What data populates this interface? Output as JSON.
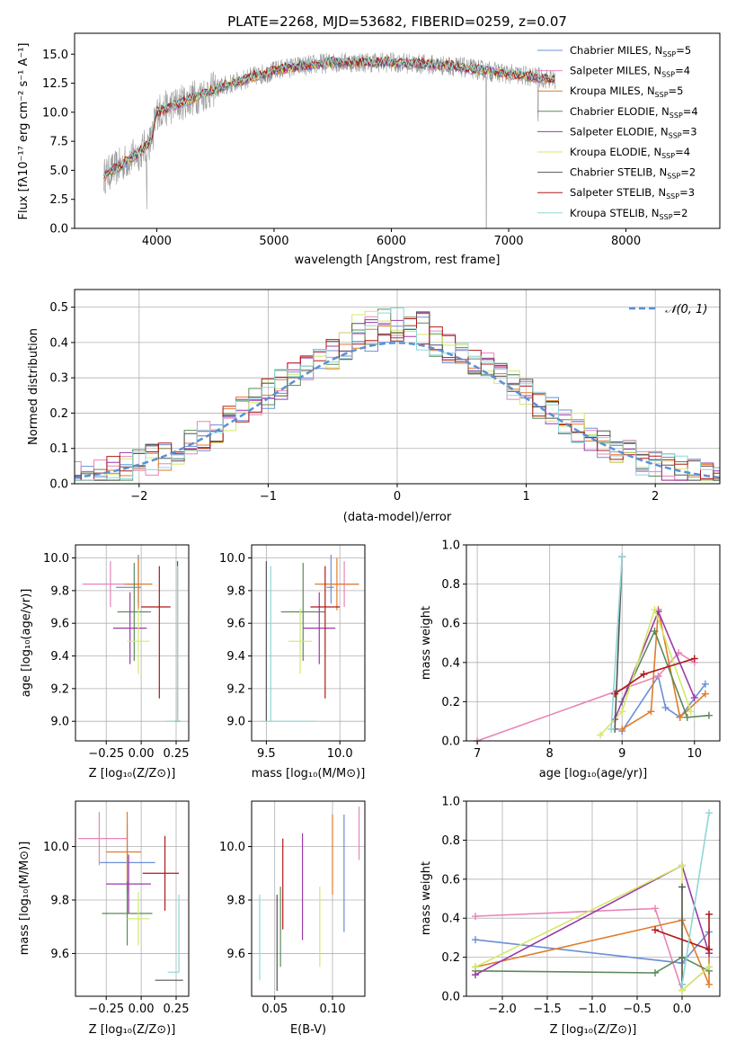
{
  "figure": {
    "title": "PLATE=2268, MJD=53682, FIBERID=0259, z=0.07"
  },
  "colors": {
    "Chabrier MILES": "#6a8fd6",
    "Salpeter MILES": "#e884b9",
    "Kroupa MILES": "#e07b29",
    "Chabrier ELODIE": "#5a8a5a",
    "Salpeter ELODIE": "#9b3aa8",
    "Kroupa ELODIE": "#d4e86a",
    "Chabrier STELIB": "#555555",
    "Salpeter STELIB": "#b01818",
    "Kroupa STELIB": "#8fd7d7",
    "data": "#999999",
    "normal": "#5b8fd6"
  },
  "chart_data": [
    {
      "id": "spectrum",
      "type": "line",
      "title": "PLATE=2268, MJD=53682, FIBERID=0259, z=0.07",
      "xlabel": "wavelength [Angstrom, rest frame]",
      "ylabel": "Flux [fλ10⁻¹⁷ erg cm⁻² s⁻¹ A⁻¹]",
      "xlim": [
        3300,
        8800
      ],
      "ylim": [
        0,
        16.8
      ],
      "xticks": [
        4000,
        5000,
        6000,
        7000,
        8000
      ],
      "yticks": [
        0.0,
        2.5,
        5.0,
        7.5,
        10.0,
        12.5,
        15.0
      ],
      "legend_position": "top-right",
      "legend": [
        "Chabrier MILES, N_SSP=5",
        "Salpeter MILES, N_SSP=4",
        "Kroupa MILES, N_SSP=5",
        "Chabrier ELODIE, N_SSP=4",
        "Salpeter ELODIE, N_SSP=3",
        "Kroupa ELODIE, N_SSP=4",
        "Chabrier STELIB, N_SSP=2",
        "Salpeter STELIB, N_SSP=3",
        "Kroupa STELIB, N_SSP=2"
      ],
      "continuum": [
        [
          3550,
          4.5
        ],
        [
          3700,
          5.5
        ],
        [
          3850,
          6.5
        ],
        [
          3950,
          7.5
        ],
        [
          4000,
          10.0
        ],
        [
          4200,
          10.8
        ],
        [
          4500,
          12.0
        ],
        [
          4800,
          13.0
        ],
        [
          5100,
          13.8
        ],
        [
          5500,
          14.3
        ],
        [
          6000,
          14.3
        ],
        [
          6500,
          14.0
        ],
        [
          7000,
          13.3
        ],
        [
          7400,
          12.8
        ]
      ],
      "spikes": [
        [
          3915,
          -4
        ],
        [
          3970,
          -3
        ],
        [
          6810,
          -14
        ],
        [
          7250,
          -3
        ]
      ]
    },
    {
      "id": "residuals",
      "type": "bar",
      "xlabel": "(data-model)/error",
      "ylabel": "Normed distribution",
      "xlim": [
        -2.5,
        2.5
      ],
      "ylim": [
        0,
        0.55
      ],
      "xticks": [
        -2,
        -1,
        0,
        1,
        2
      ],
      "yticks": [
        0.0,
        0.1,
        0.2,
        0.3,
        0.4,
        0.5
      ],
      "grid": true,
      "legend_position": "top-right",
      "normal_label": "𝒩(0, 1)",
      "bin_width": 0.1
    },
    {
      "id": "z-vs-age",
      "type": "scatter",
      "xlabel": "Z [log₁₀(Z/Z⊙)]",
      "ylabel": "age  [log₁₀(age/yr)]",
      "xlim": [
        -0.47,
        0.34
      ],
      "ylim": [
        8.88,
        10.08
      ],
      "xticks": [
        -0.25,
        0.0,
        0.25
      ],
      "yticks": [
        9.0,
        9.2,
        9.4,
        9.6,
        9.8,
        10.0
      ],
      "grid": true,
      "points": [
        {
          "model": "Chabrier MILES",
          "x": -0.02,
          "xerr": [
            0.16,
            0.02
          ],
          "y": 9.82,
          "yerr": [
            0.1,
            0.2
          ]
        },
        {
          "model": "Salpeter MILES",
          "x": -0.22,
          "xerr": [
            0.2,
            0.2
          ],
          "y": 9.84,
          "yerr": [
            0.14,
            0.14
          ]
        },
        {
          "model": "Kroupa MILES",
          "x": -0.02,
          "xerr": [
            0.1,
            0.1
          ],
          "y": 9.84,
          "yerr": [
            0.16,
            0.16
          ]
        },
        {
          "model": "Chabrier ELODIE",
          "x": -0.05,
          "xerr": [
            0.12,
            0.12
          ],
          "y": 9.67,
          "yerr": [
            0.3,
            0.3
          ]
        },
        {
          "model": "Salpeter ELODIE",
          "x": -0.08,
          "xerr": [
            0.12,
            0.12
          ],
          "y": 9.57,
          "yerr": [
            0.22,
            0.22
          ]
        },
        {
          "model": "Kroupa ELODIE",
          "x": -0.02,
          "xerr": [
            0.08,
            0.08
          ],
          "y": 9.49,
          "yerr": [
            0.2,
            0.2
          ]
        },
        {
          "model": "Chabrier STELIB",
          "x": 0.26,
          "xerr": [
            0.02,
            0.02
          ],
          "y": 9.0,
          "yerr": [
            0.0,
            0.98
          ]
        },
        {
          "model": "Salpeter STELIB",
          "x": 0.13,
          "xerr": [
            0.13,
            0.08
          ],
          "y": 9.7,
          "yerr": [
            0.56,
            0.25
          ]
        },
        {
          "model": "Kroupa STELIB",
          "x": 0.26,
          "xerr": [
            0.08,
            0.02
          ],
          "y": 9.0,
          "yerr": [
            0.0,
            0.95
          ]
        }
      ]
    },
    {
      "id": "mass-vs-age",
      "type": "scatter",
      "xlabel": "mass [log₁₀(M/M⊙)]",
      "ylabel": "",
      "xlim": [
        9.4,
        10.17
      ],
      "ylim": [
        8.88,
        10.08
      ],
      "xticks": [
        9.5,
        10.0
      ],
      "yticks": [
        9.0,
        9.2,
        9.4,
        9.6,
        9.8,
        10.0
      ],
      "grid": true,
      "points": [
        {
          "model": "Chabrier MILES",
          "x": 9.94,
          "xerr": [
            0.03,
            0.02
          ],
          "y": 9.82,
          "yerr": [
            0.1,
            0.2
          ]
        },
        {
          "model": "Salpeter MILES",
          "x": 10.03,
          "xerr": [
            0.1,
            0.1
          ],
          "y": 9.84,
          "yerr": [
            0.14,
            0.14
          ]
        },
        {
          "model": "Kroupa MILES",
          "x": 9.98,
          "xerr": [
            0.15,
            0.15
          ],
          "y": 9.84,
          "yerr": [
            0.16,
            0.16
          ]
        },
        {
          "model": "Chabrier ELODIE",
          "x": 9.75,
          "xerr": [
            0.15,
            0.15
          ],
          "y": 9.67,
          "yerr": [
            0.3,
            0.3
          ]
        },
        {
          "model": "Salpeter ELODIE",
          "x": 9.86,
          "xerr": [
            0.11,
            0.11
          ],
          "y": 9.57,
          "yerr": [
            0.22,
            0.22
          ]
        },
        {
          "model": "Kroupa ELODIE",
          "x": 9.73,
          "xerr": [
            0.08,
            0.08
          ],
          "y": 9.49,
          "yerr": [
            0.2,
            0.2
          ]
        },
        {
          "model": "Chabrier STELIB",
          "x": 9.5,
          "xerr": [
            0.0,
            0.0
          ],
          "y": 9.0,
          "yerr": [
            0.0,
            0.98
          ]
        },
        {
          "model": "Salpeter STELIB",
          "x": 9.9,
          "xerr": [
            0.1,
            0.1
          ],
          "y": 9.7,
          "yerr": [
            0.56,
            0.25
          ]
        },
        {
          "model": "Kroupa STELIB",
          "x": 9.53,
          "xerr": [
            0.06,
            0.3
          ],
          "y": 9.0,
          "yerr": [
            0.0,
            0.95
          ]
        }
      ]
    },
    {
      "id": "age-vs-weight",
      "type": "line",
      "xlabel": "age  [log₁₀(age/yr)]",
      "ylabel": "mass weight",
      "xlim": [
        6.85,
        10.35
      ],
      "ylim": [
        0,
        1.0
      ],
      "xticks": [
        7,
        8,
        9,
        10
      ],
      "yticks": [
        0.0,
        0.2,
        0.4,
        0.6,
        0.8,
        1.0
      ],
      "grid": true,
      "series": [
        {
          "model": "Chabrier MILES",
          "x": [
            9.0,
            9.5,
            9.6,
            9.8,
            10.15
          ],
          "y": [
            0.05,
            0.33,
            0.17,
            0.12,
            0.29
          ]
        },
        {
          "model": "Salpeter MILES",
          "x": [
            7.0,
            9.5,
            9.78,
            10.0
          ],
          "y": [
            0.0,
            0.33,
            0.45,
            0.4
          ]
        },
        {
          "model": "Kroupa MILES",
          "x": [
            9.0,
            9.4,
            9.5,
            9.8,
            10.15
          ],
          "y": [
            0.06,
            0.15,
            0.67,
            0.12,
            0.24
          ]
        },
        {
          "model": "Chabrier ELODIE",
          "x": [
            9.0,
            9.45,
            9.9,
            10.2
          ],
          "y": [
            0.2,
            0.56,
            0.12,
            0.13
          ]
        },
        {
          "model": "Salpeter ELODIE",
          "x": [
            8.9,
            9.5,
            10.0
          ],
          "y": [
            0.11,
            0.66,
            0.22
          ]
        },
        {
          "model": "Kroupa ELODIE",
          "x": [
            8.7,
            9.0,
            9.45,
            9.95
          ],
          "y": [
            0.03,
            0.15,
            0.67,
            0.15
          ]
        },
        {
          "model": "Chabrier STELIB",
          "x": [
            8.9,
            9.0
          ],
          "y": [
            0.06,
            0.94
          ]
        },
        {
          "model": "Salpeter STELIB",
          "x": [
            8.9,
            9.3,
            10.0
          ],
          "y": [
            0.24,
            0.34,
            0.42
          ]
        },
        {
          "model": "Kroupa STELIB",
          "x": [
            8.85,
            9.0
          ],
          "y": [
            0.06,
            0.94
          ]
        }
      ]
    },
    {
      "id": "z-vs-mass",
      "type": "scatter",
      "xlabel": "Z [log₁₀(Z/Z⊙)]",
      "ylabel": "mass [log₁₀(M/M⊙)]",
      "xlim": [
        -0.47,
        0.34
      ],
      "ylim": [
        9.44,
        10.17
      ],
      "xticks": [
        -0.25,
        0.0,
        0.25
      ],
      "yticks": [
        9.6,
        9.8,
        10.0
      ],
      "grid": true,
      "points": [
        {
          "model": "Chabrier MILES",
          "x": -0.1,
          "xerr": [
            0.2,
            0.2
          ],
          "y": 9.94,
          "yerr": [
            0.12,
            0.14
          ]
        },
        {
          "model": "Salpeter MILES",
          "x": -0.3,
          "xerr": [
            0.15,
            0.2
          ],
          "y": 10.03,
          "yerr": [
            0.1,
            0.1
          ]
        },
        {
          "model": "Kroupa MILES",
          "x": -0.1,
          "xerr": [
            0.15,
            0.1
          ],
          "y": 9.98,
          "yerr": [
            0.15,
            0.15
          ]
        },
        {
          "model": "Chabrier ELODIE",
          "x": -0.1,
          "xerr": [
            0.18,
            0.18
          ],
          "y": 9.75,
          "yerr": [
            0.12,
            0.12
          ]
        },
        {
          "model": "Salpeter ELODIE",
          "x": -0.09,
          "xerr": [
            0.16,
            0.16
          ],
          "y": 9.86,
          "yerr": [
            0.11,
            0.11
          ]
        },
        {
          "model": "Kroupa ELODIE",
          "x": -0.02,
          "xerr": [
            0.08,
            0.08
          ],
          "y": 9.73,
          "yerr": [
            0.1,
            0.1
          ]
        },
        {
          "model": "Chabrier STELIB",
          "x": 0.2,
          "xerr": [
            0.1,
            0.1
          ],
          "y": 9.5,
          "yerr": [
            0.0,
            0.0
          ]
        },
        {
          "model": "Salpeter STELIB",
          "x": 0.17,
          "xerr": [
            0.16,
            0.1
          ],
          "y": 9.9,
          "yerr": [
            0.14,
            0.14
          ]
        },
        {
          "model": "Kroupa STELIB",
          "x": 0.27,
          "xerr": [
            0.08,
            0.0
          ],
          "y": 9.53,
          "yerr": [
            0.0,
            0.29
          ]
        }
      ]
    },
    {
      "id": "ebv-vs-mass",
      "type": "scatter",
      "xlabel": "E(B-V)",
      "ylabel": "",
      "xlim": [
        0.03,
        0.128
      ],
      "ylim": [
        9.44,
        10.17
      ],
      "xticks": [
        0.05,
        0.1
      ],
      "yticks": [
        9.6,
        9.8,
        10.0
      ],
      "grid": true,
      "points": [
        {
          "model": "Chabrier MILES",
          "x": 0.11,
          "xerr": [
            0,
            0
          ],
          "y": 9.9,
          "yerr": [
            0.22,
            0.22
          ]
        },
        {
          "model": "Salpeter MILES",
          "x": 0.123,
          "xerr": [
            0,
            0
          ],
          "y": 10.05,
          "yerr": [
            0.1,
            0.1
          ]
        },
        {
          "model": "Kroupa MILES",
          "x": 0.1,
          "xerr": [
            0,
            0
          ],
          "y": 9.97,
          "yerr": [
            0.15,
            0.15
          ]
        },
        {
          "model": "Chabrier ELODIE",
          "x": 0.055,
          "xerr": [
            0,
            0
          ],
          "y": 9.7,
          "yerr": [
            0.15,
            0.15
          ]
        },
        {
          "model": "Salpeter ELODIE",
          "x": 0.074,
          "xerr": [
            0,
            0
          ],
          "y": 9.85,
          "yerr": [
            0.2,
            0.2
          ]
        },
        {
          "model": "Kroupa ELODIE",
          "x": 0.089,
          "xerr": [
            0,
            0
          ],
          "y": 9.7,
          "yerr": [
            0.15,
            0.15
          ]
        },
        {
          "model": "Chabrier STELIB",
          "x": 0.052,
          "xerr": [
            0,
            0
          ],
          "y": 9.64,
          "yerr": [
            0.18,
            0.18
          ]
        },
        {
          "model": "Salpeter STELIB",
          "x": 0.057,
          "xerr": [
            0,
            0
          ],
          "y": 9.86,
          "yerr": [
            0.17,
            0.17
          ]
        },
        {
          "model": "Kroupa STELIB",
          "x": 0.037,
          "xerr": [
            0,
            0
          ],
          "y": 9.66,
          "yerr": [
            0.16,
            0.16
          ]
        }
      ]
    },
    {
      "id": "z-vs-weight",
      "type": "line",
      "xlabel": "Z [log₁₀(Z/Z⊙)]",
      "ylabel": "mass weight",
      "xlim": [
        -2.4,
        0.42
      ],
      "ylim": [
        0,
        1.0
      ],
      "xticks": [
        -2.0,
        -1.5,
        -1.0,
        -0.5,
        0.0
      ],
      "yticks": [
        0.0,
        0.2,
        0.4,
        0.6,
        0.8,
        1.0
      ],
      "grid": true,
      "series": [
        {
          "model": "Chabrier MILES",
          "x": [
            -2.3,
            0.0,
            0.3
          ],
          "y": [
            0.29,
            0.17,
            0.33
          ]
        },
        {
          "model": "Salpeter MILES",
          "x": [
            -2.3,
            -0.3,
            0.0,
            0.3
          ],
          "y": [
            0.41,
            0.45,
            0.03,
            0.15
          ]
        },
        {
          "model": "Kroupa MILES",
          "x": [
            -2.3,
            0.0,
            0.3,
            0.3
          ],
          "y": [
            0.15,
            0.39,
            0.06,
            0.24
          ]
        },
        {
          "model": "Chabrier ELODIE",
          "x": [
            -2.3,
            -0.3,
            0.0,
            0.3
          ],
          "y": [
            0.13,
            0.12,
            0.2,
            0.13
          ]
        },
        {
          "model": "Salpeter ELODIE",
          "x": [
            -2.3,
            0.0,
            0.3
          ],
          "y": [
            0.11,
            0.67,
            0.22
          ]
        },
        {
          "model": "Kroupa ELODIE",
          "x": [
            -2.3,
            0.0,
            0.0,
            0.3
          ],
          "y": [
            0.15,
            0.67,
            0.03,
            0.15
          ]
        },
        {
          "model": "Chabrier STELIB",
          "x": [
            0.0,
            0.0
          ],
          "y": [
            0.56,
            0.06
          ]
        },
        {
          "model": "Salpeter STELIB",
          "x": [
            -0.3,
            0.3,
            0.3
          ],
          "y": [
            0.34,
            0.24,
            0.42
          ]
        },
        {
          "model": "Kroupa STELIB",
          "x": [
            0.0,
            0.3
          ],
          "y": [
            0.06,
            0.94
          ]
        }
      ]
    }
  ]
}
